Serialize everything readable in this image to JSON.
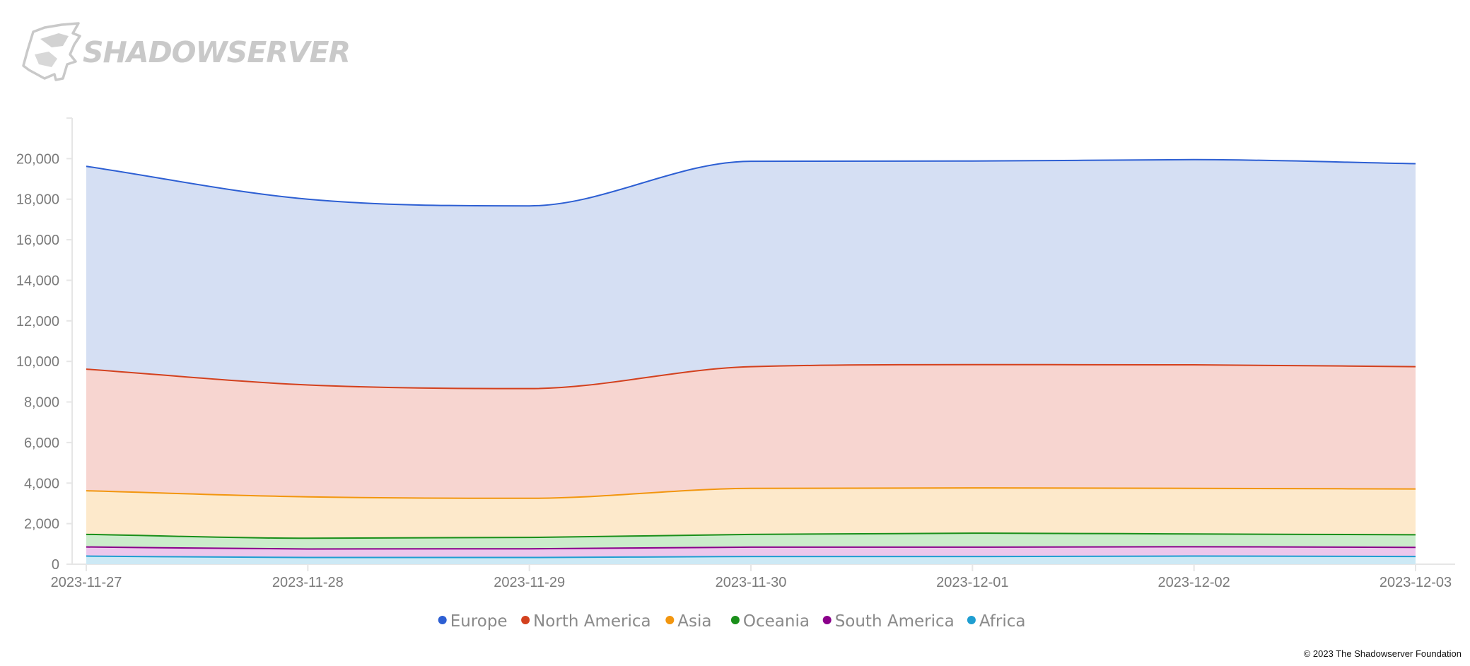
{
  "brand": {
    "logo_text": "SHADOWSERVER",
    "logo_icon": "shadowserver-wolf-icon"
  },
  "copyright": "© 2023 The Shadowserver Foundation",
  "chart_data": {
    "type": "area",
    "stacked": true,
    "smooth": true,
    "categories": [
      "2023-11-27",
      "2023-11-28",
      "2023-11-29",
      "2023-11-30",
      "2023-12-01",
      "2023-12-02",
      "2023-12-03"
    ],
    "ylim": [
      0,
      22000
    ],
    "yticks": [
      0,
      2000,
      4000,
      6000,
      8000,
      10000,
      12000,
      14000,
      16000,
      18000,
      20000
    ],
    "ytick_labels": [
      "0",
      "2,000",
      "4,000",
      "6,000",
      "8,000",
      "10,000",
      "12,000",
      "14,000",
      "16,000",
      "18,000",
      "20,000"
    ],
    "grid": false,
    "legend_position": "bottom",
    "series": [
      {
        "name": "Africa",
        "color": "#1f9ed1",
        "fill": "#cde9f5",
        "values": [
          400,
          330,
          330,
          380,
          380,
          400,
          380
        ]
      },
      {
        "name": "South America",
        "color": "#8b008b",
        "fill": "#ecc7ec",
        "values": [
          450,
          420,
          430,
          460,
          460,
          460,
          450
        ]
      },
      {
        "name": "Oceania",
        "color": "#1a8f1a",
        "fill": "#cbeccb",
        "values": [
          620,
          530,
          560,
          630,
          690,
          630,
          620
        ]
      },
      {
        "name": "Asia",
        "color": "#f2960f",
        "fill": "#fde9cb",
        "values": [
          2150,
          2040,
          1930,
          2270,
          2230,
          2250,
          2260
        ]
      },
      {
        "name": "North America",
        "color": "#d3411e",
        "fill": "#f7d5d0",
        "values": [
          6000,
          5520,
          5410,
          6000,
          6080,
          6090,
          6030
        ]
      },
      {
        "name": "Europe",
        "color": "#2d5fd3",
        "fill": "#d5dff3",
        "values": [
          10000,
          9160,
          9010,
          10130,
          10040,
          10120,
          10010
        ]
      }
    ],
    "legend_order": [
      "Europe",
      "North America",
      "Asia",
      "Oceania",
      "South America",
      "Africa"
    ]
  }
}
